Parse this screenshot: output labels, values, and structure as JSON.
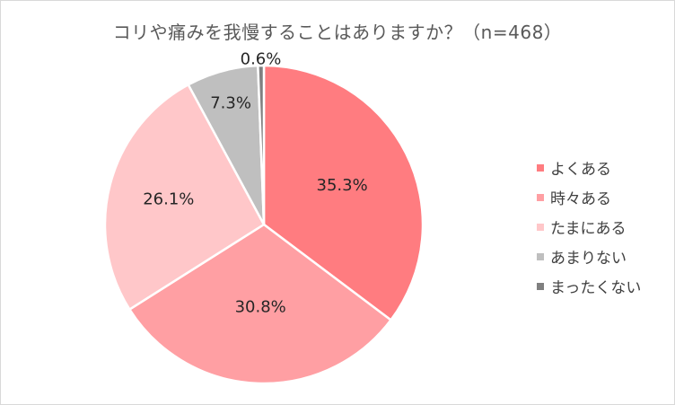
{
  "chart_data": {
    "type": "pie",
    "title": "コリや痛みを我慢することはありますか？（n=468）",
    "categories": [
      "よくある",
      "時々ある",
      "たまにある",
      "あまりない",
      "まったくない"
    ],
    "values": [
      35.3,
      30.8,
      26.1,
      7.3,
      0.6
    ],
    "value_labels": [
      "35.3%",
      "30.8%",
      "26.1%",
      "7.3%",
      "0.6%"
    ],
    "colors": [
      "#ff7c80",
      "#ff9fa3",
      "#ffc7c9",
      "#bfbfbf",
      "#808080"
    ],
    "legend_position": "right"
  }
}
